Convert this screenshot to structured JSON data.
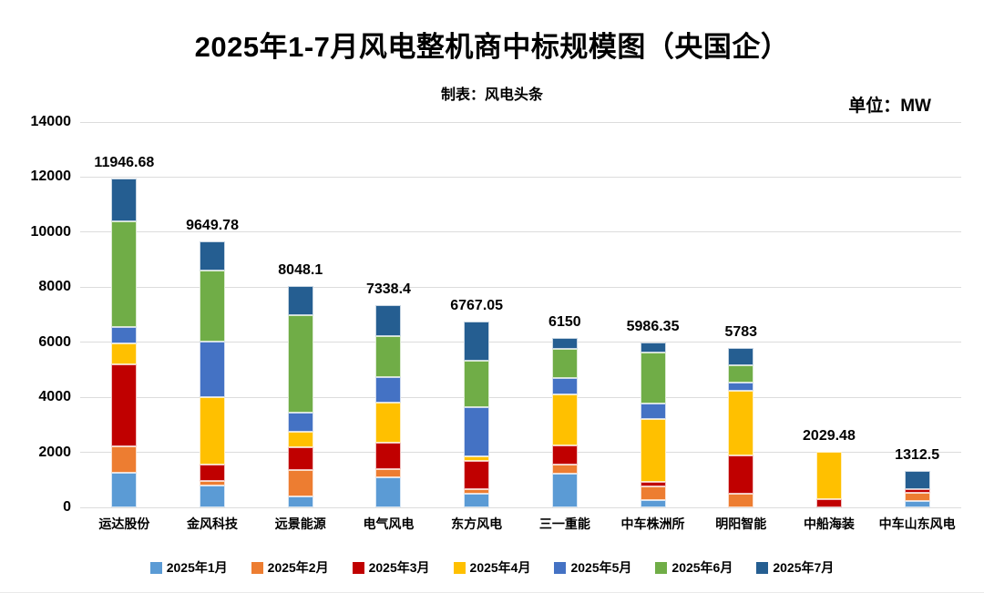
{
  "title": "2025年1-7月风电整机商中标规模图（央国企）",
  "subtitle": "制表：风电头条",
  "unit_label": "单位：MW",
  "chart_data": {
    "type": "bar",
    "stacked": true,
    "unit": "MW",
    "grid": true,
    "legend_position": "bottom",
    "ylim": [
      0,
      14000
    ],
    "yticks": [
      0,
      2000,
      4000,
      6000,
      8000,
      10000,
      12000,
      14000
    ],
    "categories": [
      "运达股份",
      "金风科技",
      "远景能源",
      "电气风电",
      "东方风电",
      "三一重能",
      "中车株洲所",
      "明阳智能",
      "中船海装",
      "中车山东风电"
    ],
    "totals": [
      11946.68,
      9649.78,
      8048.1,
      7338.4,
      6767.05,
      6150,
      5986.35,
      5783,
      2029.48,
      1312.5
    ],
    "series": [
      {
        "name": "2025年1月",
        "color": "#5B9BD5",
        "values": [
          1257,
          790,
          400,
          1090,
          510,
          1233,
          257,
          0,
          0,
          233
        ]
      },
      {
        "name": "2025年2月",
        "color": "#ED7D31",
        "values": [
          976,
          167,
          943,
          310,
          167,
          334,
          500,
          490,
          0,
          300
        ]
      },
      {
        "name": "2025年3月",
        "color": "#C00000",
        "values": [
          2967,
          610,
          857,
          943,
          1000,
          700,
          166,
          1387,
          290,
          124
        ]
      },
      {
        "name": "2025年4月",
        "color": "#FFC000",
        "values": [
          757,
          2443,
          557,
          1480,
          190,
          1833,
          2287,
          2356,
          1739.48,
          0
        ]
      },
      {
        "name": "2025年5月",
        "color": "#4472C4",
        "values": [
          610,
          2000,
          676,
          910,
          1776,
          600,
          580,
          310,
          0,
          0
        ]
      },
      {
        "name": "2025年6月",
        "color": "#70AD47",
        "values": [
          3833,
          2590,
          3544,
          1500,
          1700,
          1067,
          1833,
          634,
          0,
          0
        ]
      },
      {
        "name": "2025年7月",
        "color": "#255E91",
        "values": [
          1546.68,
          1049.78,
          1071.1,
          1105.4,
          1424.05,
          383,
          363.35,
          606,
          0,
          655.5
        ]
      }
    ]
  }
}
